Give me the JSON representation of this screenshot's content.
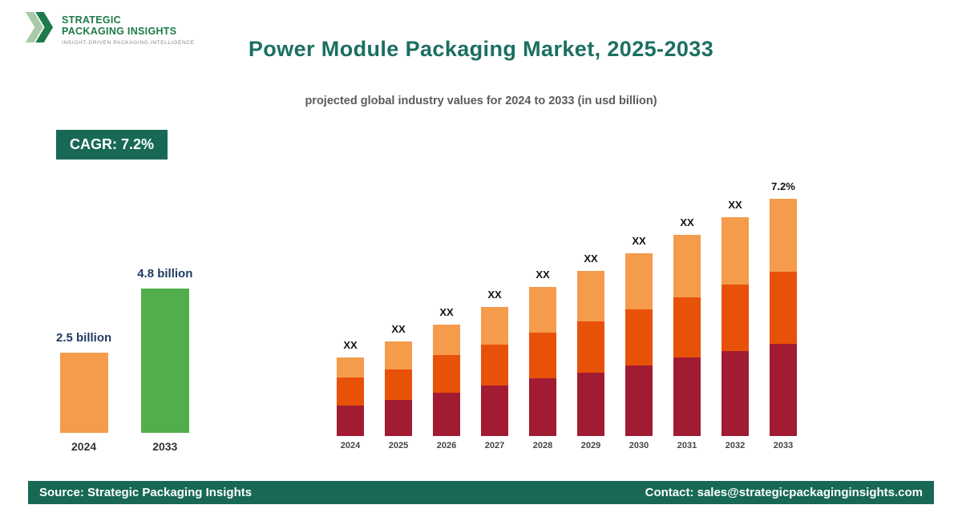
{
  "logo": {
    "name_line1": "STRATEGIC",
    "name_line2": "PACKAGING INSIGHTS",
    "tagline": "INSIGHT-DRIVEN PACKAGING INTELLIGENCE"
  },
  "header": {
    "title": "Power Module Packaging Market, 2025-2033",
    "subtitle": "projected global industry values for 2024 to 2033 (in usd billion)"
  },
  "badge": {
    "label": "CAGR: 7.2%"
  },
  "highlight_chart": {
    "bars": [
      {
        "year": "2024",
        "value_label": "2.5 billion",
        "color": "#f59b4c",
        "height": 100
      },
      {
        "year": "2033",
        "value_label": "4.8 billion",
        "color": "#52ae4b",
        "height": 180
      }
    ]
  },
  "chart_data": {
    "type": "bar",
    "stacked": true,
    "title": "Power Module Packaging Market, 2025-2033",
    "xlabel": "",
    "ylabel": "",
    "categories": [
      "2024",
      "2025",
      "2026",
      "2027",
      "2028",
      "2029",
      "2030",
      "2031",
      "2032",
      "2033"
    ],
    "series": [
      {
        "name": "segment-bottom",
        "color": "#a11b33",
        "values": [
          38,
          45,
          54,
          63,
          72,
          79,
          88,
          98,
          106,
          115
        ]
      },
      {
        "name": "segment-middle",
        "color": "#e85108",
        "values": [
          35,
          38,
          47,
          51,
          57,
          64,
          70,
          75,
          83,
          90
        ]
      },
      {
        "name": "segment-top",
        "color": "#f59b4c",
        "values": [
          25,
          35,
          38,
          47,
          57,
          63,
          70,
          78,
          84,
          91
        ]
      }
    ],
    "bar_top_labels": [
      "XX",
      "XX",
      "XX",
      "XX",
      "XX",
      "XX",
      "XX",
      "XX",
      "XX",
      "7.2%"
    ],
    "legend": "none",
    "grid": false
  },
  "footer": {
    "source": "Source: Strategic Packaging Insights",
    "contact": "Contact: sales@strategicpackaginginsights.com"
  }
}
